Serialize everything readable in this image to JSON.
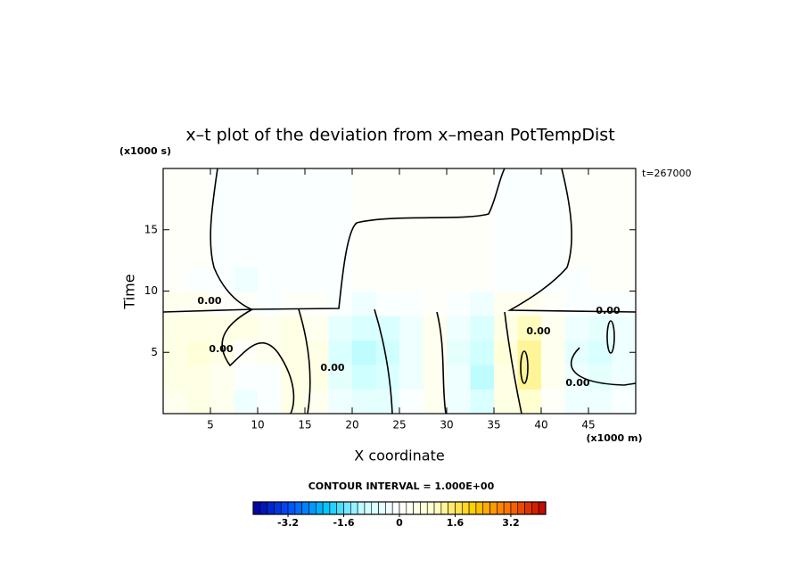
{
  "chart_data": {
    "type": "contour",
    "title": "x–t plot of the deviation from x–mean PotTempDist",
    "x_label": "X coordinate",
    "y_label": "Time",
    "x_units": "(x1000 m)",
    "y_units": "(x1000 s)",
    "time_note": "t=267000",
    "xlim": [
      0,
      50
    ],
    "ylim": [
      0,
      20
    ],
    "xticks": [
      5,
      10,
      15,
      20,
      25,
      30,
      35,
      40,
      45
    ],
    "yticks": [
      5,
      10,
      15
    ],
    "xbins": [
      0,
      2.5,
      5,
      7.5,
      10,
      12.5,
      15,
      17.5,
      20,
      22.5,
      25,
      27.5,
      30,
      32.5,
      35,
      37.5,
      40,
      42.5,
      45,
      47.5,
      50
    ],
    "ybins": [
      0,
      2,
      4,
      6,
      8,
      10,
      12,
      14,
      16,
      18,
      20
    ],
    "z": [
      [
        0.3,
        0.5,
        0.2,
        -0.3,
        -0.2,
        0.4,
        0.3,
        -0.4,
        -0.6,
        -0.5,
        -0.2,
        0.2,
        -0.3,
        -0.8,
        0.5,
        0.9,
        0.1,
        -0.3,
        -0.4,
        -0.2
      ],
      [
        0.4,
        0.6,
        0.3,
        -0.2,
        -0.1,
        0.5,
        0.4,
        -0.6,
        -1.0,
        -0.8,
        -0.3,
        0.2,
        -0.4,
        -1.2,
        0.6,
        1.2,
        0.2,
        -0.4,
        -0.6,
        -0.3
      ],
      [
        0.5,
        0.7,
        0.4,
        0.1,
        0.2,
        0.6,
        0.4,
        -0.7,
        -1.1,
        -0.9,
        -0.4,
        0.3,
        -0.5,
        -1.0,
        0.7,
        1.3,
        0.3,
        -0.5,
        -0.7,
        -0.4
      ],
      [
        0.4,
        0.6,
        0.5,
        0.4,
        0.3,
        0.5,
        0.3,
        -0.5,
        -0.8,
        -0.7,
        -0.3,
        0.2,
        -0.4,
        -0.7,
        0.6,
        1.0,
        0.2,
        -0.3,
        -0.5,
        -0.3
      ],
      [
        0.2,
        0.2,
        0.1,
        0.0,
        -0.1,
        0.1,
        0.0,
        -0.2,
        -0.3,
        -0.2,
        -0.1,
        0.1,
        -0.2,
        -0.3,
        0.2,
        0.3,
        0.0,
        -0.2,
        -0.2,
        -0.1
      ],
      [
        0.05,
        -0.1,
        -0.2,
        -0.25,
        -0.2,
        -0.15,
        -0.15,
        -0.1,
        0.05,
        0.05,
        0.05,
        0.05,
        0.05,
        0.05,
        -0.1,
        -0.15,
        -0.15,
        -0.05,
        0.05,
        0.05
      ],
      [
        0.05,
        0.05,
        -0.15,
        -0.15,
        -0.15,
        -0.15,
        -0.15,
        -0.1,
        0.05,
        0.05,
        0.05,
        0.05,
        0.05,
        0.05,
        -0.1,
        -0.1,
        -0.1,
        0.05,
        0.05,
        0.05
      ],
      [
        0.05,
        0.05,
        -0.15,
        -0.15,
        -0.15,
        -0.15,
        -0.15,
        -0.1,
        0.05,
        0.05,
        0.05,
        0.05,
        0.05,
        0.05,
        -0.1,
        -0.1,
        -0.1,
        0.05,
        0.05,
        0.05
      ],
      [
        0.05,
        0.05,
        -0.15,
        -0.15,
        -0.15,
        -0.15,
        -0.15,
        -0.1,
        0.05,
        0.05,
        0.05,
        0.05,
        0.05,
        0.05,
        -0.1,
        -0.1,
        -0.1,
        0.05,
        0.05,
        0.05
      ],
      [
        0.05,
        0.05,
        -0.15,
        -0.15,
        -0.15,
        -0.15,
        -0.15,
        -0.1,
        0.05,
        0.05,
        0.05,
        0.05,
        0.05,
        0.05,
        -0.1,
        -0.1,
        -0.1,
        0.05,
        0.05,
        0.05
      ]
    ],
    "contour_labels": [
      "0.00",
      "0.00",
      "0.00",
      "0.00",
      "0.00",
      "0.00"
    ],
    "contour_interval_text": "CONTOUR INTERVAL = 1.000E+00",
    "clim": [
      -4.2,
      4.2
    ],
    "cstep": 0.2,
    "cticks": [
      -3.2,
      -1.6,
      0,
      1.6,
      3.2
    ],
    "colormap": [
      "#0000a0",
      "#0050ff",
      "#00c8ff",
      "#c8ffff",
      "#ffffff",
      "#ffffc8",
      "#ffd000",
      "#ff7000",
      "#c00000"
    ]
  }
}
